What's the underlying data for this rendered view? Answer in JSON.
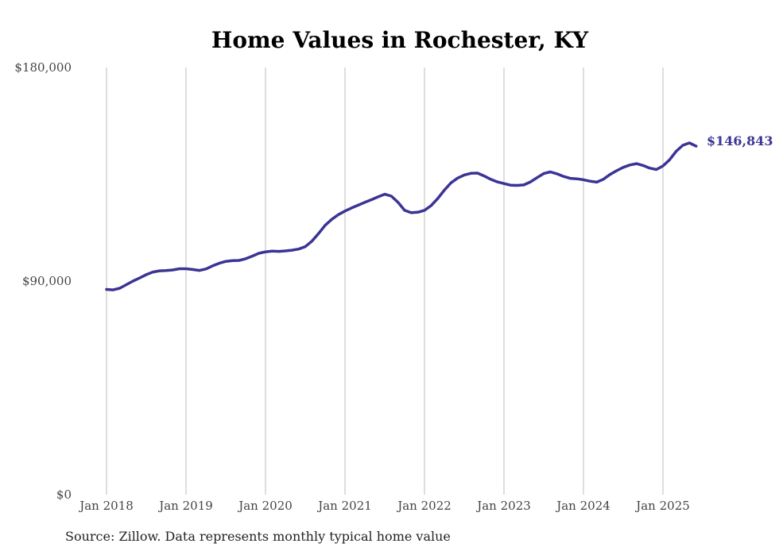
{
  "chart_data": {
    "type": "line",
    "title": "Home Values in Rochester, KY",
    "xlabel": "",
    "ylabel": "",
    "ylim": [
      0,
      180000
    ],
    "y_ticks": [
      "$0",
      "$90,000",
      "$180,000"
    ],
    "x_ticks": [
      "Jan 2018",
      "Jan 2019",
      "Jan 2020",
      "Jan 2021",
      "Jan 2022",
      "Jan 2023",
      "Jan 2024",
      "Jan 2025"
    ],
    "grid": "vertical",
    "line_color": "#3b3495",
    "last_value_label": "$146,843",
    "series": [
      {
        "x": [
          "2018-01",
          "2018-02",
          "2018-03",
          "2018-04",
          "2018-05",
          "2018-06",
          "2018-07",
          "2018-08",
          "2018-09",
          "2018-10",
          "2018-11",
          "2018-12",
          "2019-01",
          "2019-02",
          "2019-03",
          "2019-04",
          "2019-05",
          "2019-06",
          "2019-07",
          "2019-08",
          "2019-09",
          "2019-10",
          "2019-11",
          "2019-12",
          "2020-01",
          "2020-02",
          "2020-03",
          "2020-04",
          "2020-05",
          "2020-06",
          "2020-07",
          "2020-08",
          "2020-09",
          "2020-10",
          "2020-11",
          "2020-12",
          "2021-01",
          "2021-02",
          "2021-03",
          "2021-04",
          "2021-05",
          "2021-06",
          "2021-07",
          "2021-08",
          "2021-09",
          "2021-10",
          "2021-11",
          "2021-12",
          "2022-01",
          "2022-02",
          "2022-03",
          "2022-04",
          "2022-05",
          "2022-06",
          "2022-07",
          "2022-08",
          "2022-09",
          "2022-10",
          "2022-11",
          "2022-12",
          "2023-01",
          "2023-02",
          "2023-03",
          "2023-04",
          "2023-05",
          "2023-06",
          "2023-07",
          "2023-08",
          "2023-09",
          "2023-10",
          "2023-11",
          "2023-12",
          "2024-01",
          "2024-02",
          "2024-03",
          "2024-04",
          "2024-05",
          "2024-06",
          "2024-07",
          "2024-08",
          "2024-09",
          "2024-10",
          "2024-11",
          "2024-12",
          "2025-01",
          "2025-02",
          "2025-03",
          "2025-04",
          "2025-05",
          "2025-06"
        ],
        "values": [
          86500,
          86300,
          87000,
          88500,
          90000,
          91300,
          92700,
          93800,
          94300,
          94400,
          94700,
          95200,
          95200,
          94900,
          94500,
          95100,
          96400,
          97500,
          98300,
          98600,
          98700,
          99400,
          100500,
          101700,
          102300,
          102600,
          102500,
          102700,
          103000,
          103500,
          104500,
          106800,
          110000,
          113500,
          116000,
          118000,
          119500,
          120800,
          122000,
          123200,
          124300,
          125500,
          126600,
          125800,
          123200,
          119800,
          118800,
          119000,
          119800,
          121800,
          124800,
          128300,
          131400,
          133400,
          134700,
          135400,
          135500,
          134300,
          132900,
          131800,
          131100,
          130400,
          130300,
          130500,
          131800,
          133600,
          135300,
          136000,
          135200,
          134100,
          133300,
          133100,
          132700,
          132100,
          131700,
          132900,
          134900,
          136500,
          137900,
          138900,
          139500,
          138700,
          137600,
          137000,
          138500,
          141100,
          144700,
          147200,
          148200,
          146843
        ]
      }
    ]
  },
  "source_text": "Source: Zillow. Data represents monthly typical home value"
}
